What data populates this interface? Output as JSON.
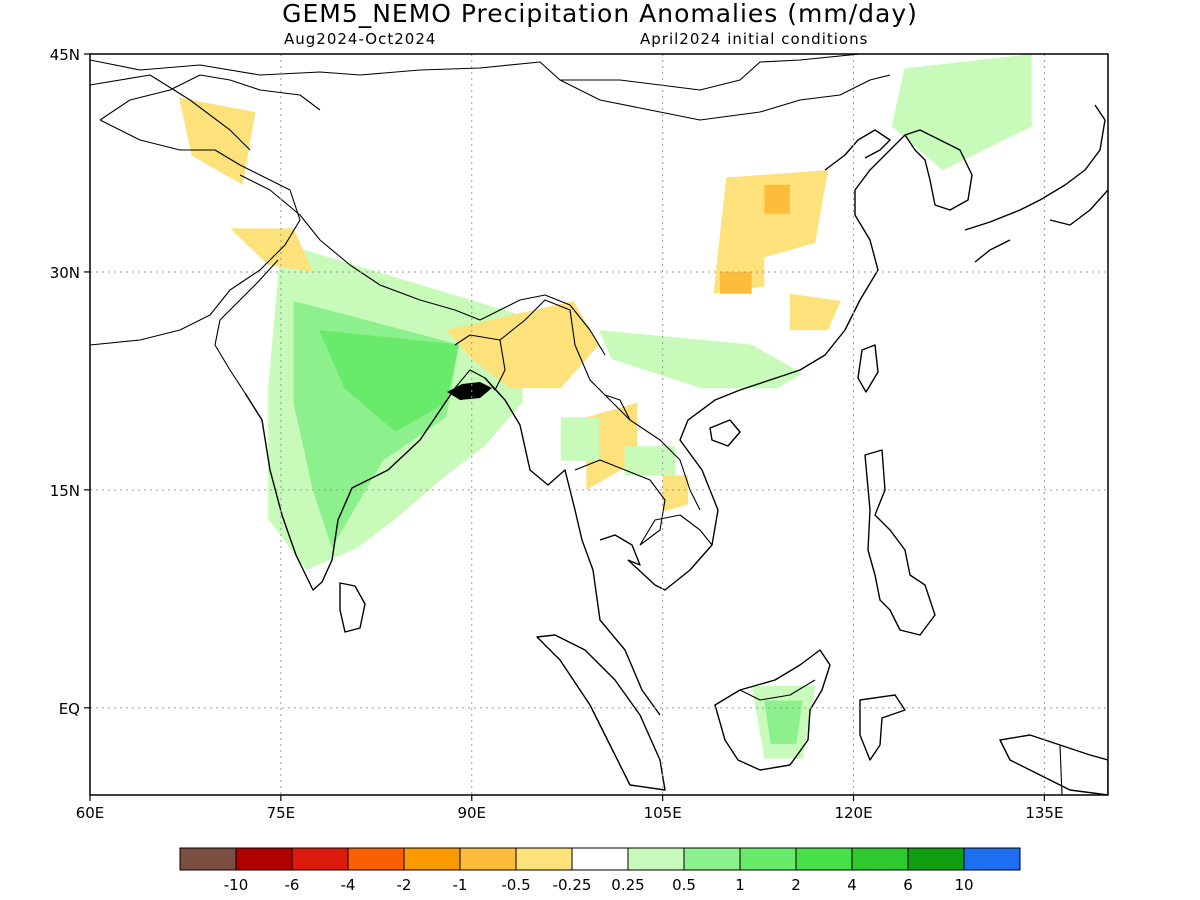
{
  "header": {
    "title": "GEM5_NEMO Precipitation Anomalies (mm/day)",
    "period": "Aug2024-Oct2024",
    "init": "April2024 initial conditions"
  },
  "map": {
    "lon_range": [
      60,
      140
    ],
    "lat_range": [
      -6,
      45
    ],
    "lat_ticks": [
      {
        "value": 45,
        "label": "45N"
      },
      {
        "value": 30,
        "label": "30N"
      },
      {
        "value": 15,
        "label": "15N"
      },
      {
        "value": 0,
        "label": "EQ"
      }
    ],
    "lon_ticks": [
      {
        "value": 60,
        "label": "60E"
      },
      {
        "value": 75,
        "label": "75E"
      },
      {
        "value": 90,
        "label": "90E"
      },
      {
        "value": 105,
        "label": "105E"
      },
      {
        "value": 120,
        "label": "120E"
      },
      {
        "value": 135,
        "label": "135E"
      }
    ],
    "grid": "dotted"
  },
  "colorbar": {
    "colors": [
      "#7a4f42",
      "#b00000",
      "#dc1a0e",
      "#fa5f00",
      "#fa9a00",
      "#fdbd3a",
      "#fde17a",
      "#ffffff",
      "#c8fbba",
      "#8cf08c",
      "#6aea6a",
      "#48e048",
      "#30c830",
      "#129e12",
      "#1e6ef0"
    ],
    "labels": [
      "-10",
      "-6",
      "-4",
      "-2",
      "-1",
      "-0.5",
      "-0.25",
      "0.25",
      "0.5",
      "1",
      "2",
      "4",
      "6",
      "10"
    ]
  },
  "anomaly_regions": [
    {
      "level": "0.5",
      "color": "#c8fbba",
      "lon": [
        75.0,
        94.0,
        94.0,
        91.0,
        88.0,
        84.0,
        81.0,
        77.0,
        74.0,
        74.0
      ],
      "lat": [
        32.0,
        27.0,
        21.0,
        18.0,
        16.0,
        13.0,
        11.0,
        9.5,
        13.0,
        22.0
      ]
    },
    {
      "level": "1",
      "color": "#8cf08c",
      "lon": [
        76.0,
        89.0,
        88.0,
        83.0,
        79.0,
        77.5,
        76.0
      ],
      "lat": [
        28.0,
        25.0,
        20.0,
        17.0,
        11.0,
        15.0,
        21.0
      ]
    },
    {
      "level": "2",
      "color": "#6aea6a",
      "lon": [
        78.0,
        89.0,
        88.0,
        84.0,
        80.0
      ],
      "lat": [
        26.0,
        25.0,
        21.0,
        19.0,
        22.0
      ]
    },
    {
      "level": "-0.25",
      "color": "#fde17a",
      "lon": [
        67.0,
        73.0,
        72.0,
        68.0
      ],
      "lat": [
        42.0,
        41.0,
        36.0,
        38.0
      ]
    },
    {
      "level": "-0.25",
      "color": "#fde17a",
      "lon": [
        71.0,
        76.0,
        77.5,
        74.0
      ],
      "lat": [
        33.0,
        33.0,
        30.0,
        30.5
      ]
    },
    {
      "level": "-0.25",
      "color": "#fde17a",
      "lon": [
        88.0,
        98.0,
        100.0,
        97.0,
        93.0,
        90.0
      ],
      "lat": [
        26.0,
        28.0,
        25.0,
        22.0,
        22.0,
        24.0
      ]
    },
    {
      "level": "-0.25",
      "color": "#fde17a",
      "lon": [
        99.0,
        103.0,
        103.0,
        99.0
      ],
      "lat": [
        20.0,
        21.0,
        17.0,
        15.0
      ]
    },
    {
      "level": "-0.25",
      "color": "#fde17a",
      "lon": [
        110.0,
        118.0,
        117.0,
        113.0,
        113.0,
        109.0
      ],
      "lat": [
        36.5,
        37.0,
        32.0,
        31.0,
        29.0,
        28.5
      ]
    },
    {
      "level": "-0.25",
      "color": "#fde17a",
      "lon": [
        115.0,
        119.0,
        118.0,
        115.0
      ],
      "lat": [
        28.5,
        28.0,
        26.0,
        26.0
      ]
    },
    {
      "level": "-0.25",
      "color": "#fde17a",
      "lon": [
        105.0,
        107.0,
        107.0,
        105.0
      ],
      "lat": [
        16.0,
        16.0,
        14.0,
        13.5
      ]
    },
    {
      "level": "-0.5",
      "color": "#fdbd3a",
      "lon": [
        113.0,
        115.0,
        115.0,
        113.0
      ],
      "lat": [
        36.0,
        36.0,
        34.0,
        34.0
      ]
    },
    {
      "level": "-0.5",
      "color": "#fdbd3a",
      "lon": [
        109.5,
        112.0,
        112.0,
        109.5
      ],
      "lat": [
        30.0,
        30.0,
        28.5,
        28.5
      ]
    },
    {
      "level": "0.5",
      "color": "#c8fbba",
      "lon": [
        100.0,
        112.0,
        116.0,
        114.0,
        108.0,
        101.0
      ],
      "lat": [
        26.0,
        25.0,
        23.0,
        22.0,
        22.0,
        24.0
      ]
    },
    {
      "level": "0.5",
      "color": "#c8fbba",
      "lon": [
        124.0,
        134.0,
        134.0,
        127.0,
        123.0
      ],
      "lat": [
        44.0,
        45.0,
        40.0,
        37.0,
        40.0
      ]
    },
    {
      "level": "0.5",
      "color": "#c8fbba",
      "lon": [
        112.0,
        117.0,
        116.0,
        113.0
      ],
      "lat": [
        1.5,
        1.5,
        -3.5,
        -3.5
      ]
    },
    {
      "level": "1",
      "color": "#8cf08c",
      "lon": [
        113.0,
        116.0,
        115.5,
        113.5
      ],
      "lat": [
        0.5,
        0.5,
        -2.5,
        -2.5
      ]
    },
    {
      "level": "0.5",
      "color": "#c8fbba",
      "lon": [
        97.0,
        100.0,
        100.0,
        97.0
      ],
      "lat": [
        20.0,
        20.0,
        17.0,
        17.0
      ]
    },
    {
      "level": "0.5",
      "color": "#c8fbba",
      "lon": [
        102.0,
        106.0,
        106.0,
        102.0
      ],
      "lat": [
        18.0,
        18.0,
        16.0,
        16.0
      ]
    }
  ]
}
